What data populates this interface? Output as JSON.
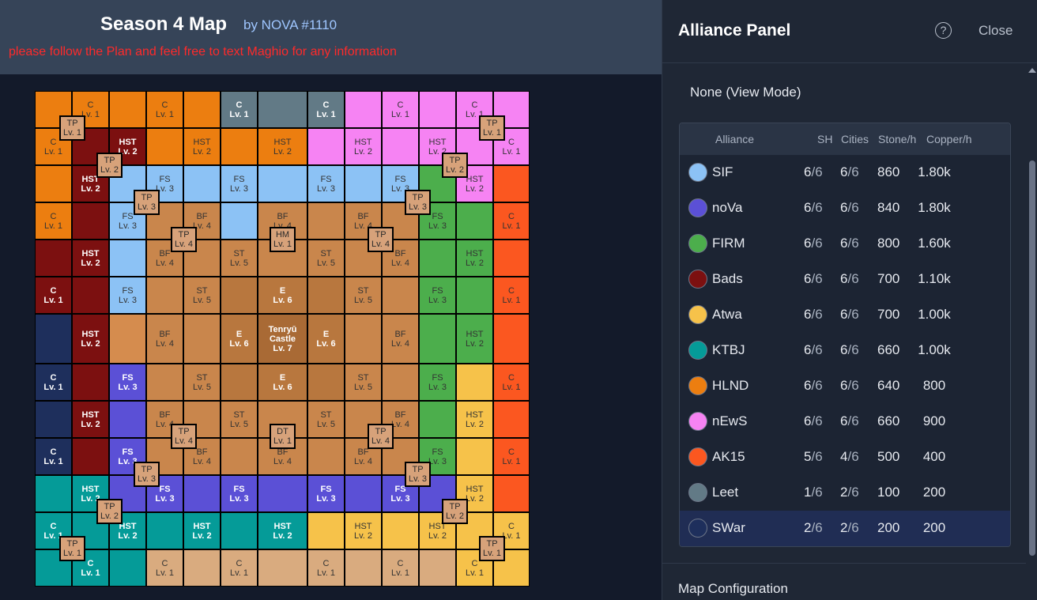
{
  "header": {
    "title": "Season 4 Map",
    "byline": "by NOVA #1110",
    "notice": "please follow the Plan and feel free to text Maghio for any information"
  },
  "colors": {
    "orange": "#ec7e10",
    "darkred": "#7c1010",
    "lightblue": "#8cc2f5",
    "purple": "#5b50d6",
    "green": "#4cae4c",
    "pink": "#f683f3",
    "red": "#fb5720",
    "gray": "#627a86",
    "navy": "#1e2f5c",
    "teal": "#059b98",
    "yellow": "#f6c24a",
    "tan": "#d9ab7f",
    "brown": "#c9864c",
    "brown2": "#b8773e",
    "brown3": "#a96a35",
    "peach": "#d58c4e"
  },
  "map": {
    "tiles": [
      [
        "orange",
        "",
        "",
        ""
      ],
      [
        "orange",
        "C",
        "Lv. 1",
        ""
      ],
      [
        "orange",
        "",
        "",
        ""
      ],
      [
        "orange",
        "C",
        "Lv. 1",
        ""
      ],
      [
        "orange",
        "",
        "",
        ""
      ],
      [
        "gray",
        "C",
        "Lv. 1",
        "dark"
      ],
      [
        "gray",
        "",
        "",
        ""
      ],
      [
        "gray",
        "C",
        "Lv. 1",
        "dark"
      ],
      [
        "pink",
        "",
        "",
        ""
      ],
      [
        "pink",
        "C",
        "Lv. 1",
        ""
      ],
      [
        "pink",
        "",
        "",
        ""
      ],
      [
        "pink",
        "C",
        "Lv. 1",
        ""
      ],
      [
        "pink",
        "",
        "",
        ""
      ],
      [
        "orange",
        "C",
        "Lv. 1",
        ""
      ],
      [
        "darkred",
        "",
        "",
        ""
      ],
      [
        "darkred",
        "HST",
        "Lv. 2",
        "dark"
      ],
      [
        "orange",
        "",
        "",
        ""
      ],
      [
        "orange",
        "HST",
        "Lv. 2",
        ""
      ],
      [
        "orange",
        "",
        "",
        ""
      ],
      [
        "orange",
        "HST",
        "Lv. 2",
        ""
      ],
      [
        "pink",
        "",
        "",
        ""
      ],
      [
        "pink",
        "HST",
        "Lv. 2",
        ""
      ],
      [
        "pink",
        "",
        "",
        ""
      ],
      [
        "pink",
        "HST",
        "Lv. 2",
        ""
      ],
      [
        "pink",
        "",
        "",
        ""
      ],
      [
        "pink",
        "C",
        "Lv. 1",
        ""
      ],
      [
        "orange",
        "",
        "",
        ""
      ],
      [
        "darkred",
        "HST",
        "Lv. 2",
        "dark"
      ],
      [
        "lightblue",
        "",
        "",
        ""
      ],
      [
        "lightblue",
        "FS",
        "Lv. 3",
        ""
      ],
      [
        "lightblue",
        "",
        "",
        ""
      ],
      [
        "lightblue",
        "FS",
        "Lv. 3",
        ""
      ],
      [
        "lightblue",
        "",
        "",
        ""
      ],
      [
        "lightblue",
        "FS",
        "Lv. 3",
        ""
      ],
      [
        "lightblue",
        "",
        "",
        ""
      ],
      [
        "lightblue",
        "FS",
        "Lv. 3",
        ""
      ],
      [
        "green",
        "",
        "",
        ""
      ],
      [
        "pink",
        "HST",
        "Lv. 2",
        ""
      ],
      [
        "red",
        "",
        "",
        ""
      ],
      [
        "orange",
        "C",
        "Lv. 1",
        ""
      ],
      [
        "darkred",
        "",
        "",
        ""
      ],
      [
        "lightblue",
        "FS",
        "Lv. 3",
        ""
      ],
      [
        "brown",
        "",
        "",
        ""
      ],
      [
        "brown",
        "BF",
        "Lv. 4",
        ""
      ],
      [
        "lightblue",
        "",
        "",
        ""
      ],
      [
        "brown",
        "BF",
        "Lv. 4",
        ""
      ],
      [
        "brown",
        "",
        "",
        ""
      ],
      [
        "brown",
        "BF",
        "Lv. 4",
        ""
      ],
      [
        "brown",
        "",
        "",
        ""
      ],
      [
        "green",
        "FS",
        "Lv. 3",
        ""
      ],
      [
        "green",
        "",
        "",
        ""
      ],
      [
        "red",
        "C",
        "Lv. 1",
        ""
      ],
      [
        "darkred",
        "",
        "",
        ""
      ],
      [
        "darkred",
        "HST",
        "Lv. 2",
        "dark"
      ],
      [
        "lightblue",
        "",
        "",
        ""
      ],
      [
        "brown",
        "BF",
        "Lv. 4",
        ""
      ],
      [
        "brown",
        "",
        "",
        ""
      ],
      [
        "brown",
        "ST",
        "Lv. 5",
        ""
      ],
      [
        "brown",
        "",
        "",
        ""
      ],
      [
        "brown",
        "ST",
        "Lv. 5",
        ""
      ],
      [
        "brown",
        "",
        "",
        ""
      ],
      [
        "brown",
        "BF",
        "Lv. 4",
        ""
      ],
      [
        "green",
        "",
        "",
        ""
      ],
      [
        "green",
        "HST",
        "Lv. 2",
        ""
      ],
      [
        "red",
        "",
        "",
        ""
      ],
      [
        "darkred",
        "C",
        "Lv. 1",
        "dark"
      ],
      [
        "darkred",
        "",
        "",
        ""
      ],
      [
        "lightblue",
        "FS",
        "Lv. 3",
        ""
      ],
      [
        "brown",
        "",
        "",
        ""
      ],
      [
        "brown",
        "ST",
        "Lv. 5",
        ""
      ],
      [
        "brown2",
        "",
        "",
        ""
      ],
      [
        "brown2",
        "E",
        "Lv. 6",
        "dark"
      ],
      [
        "brown2",
        "",
        "",
        ""
      ],
      [
        "brown",
        "ST",
        "Lv. 5",
        ""
      ],
      [
        "brown",
        "",
        "",
        ""
      ],
      [
        "green",
        "FS",
        "Lv. 3",
        ""
      ],
      [
        "green",
        "",
        "",
        ""
      ],
      [
        "red",
        "C",
        "Lv. 1",
        ""
      ],
      [
        "navy",
        "",
        "",
        ""
      ],
      [
        "darkred",
        "HST",
        "Lv. 2",
        "dark"
      ],
      [
        "peach",
        "",
        "",
        ""
      ],
      [
        "brown",
        "BF",
        "Lv. 4",
        ""
      ],
      [
        "brown",
        "",
        "",
        ""
      ],
      [
        "brown2",
        "E",
        "Lv. 6",
        "dark"
      ],
      [
        "brown3",
        "Tenryū Castle",
        "Lv. 7",
        "dark"
      ],
      [
        "brown2",
        "E",
        "Lv. 6",
        "dark"
      ],
      [
        "brown",
        "",
        "",
        ""
      ],
      [
        "brown",
        "BF",
        "Lv. 4",
        ""
      ],
      [
        "green",
        "",
        "",
        ""
      ],
      [
        "green",
        "HST",
        "Lv. 2",
        ""
      ],
      [
        "red",
        "",
        "",
        ""
      ],
      [
        "navy",
        "C",
        "Lv. 1",
        "dark"
      ],
      [
        "darkred",
        "",
        "",
        ""
      ],
      [
        "purple",
        "FS",
        "Lv. 3",
        "dark"
      ],
      [
        "brown",
        "",
        "",
        ""
      ],
      [
        "brown",
        "ST",
        "Lv. 5",
        ""
      ],
      [
        "brown2",
        "",
        "",
        ""
      ],
      [
        "brown2",
        "E",
        "Lv. 6",
        "dark"
      ],
      [
        "brown2",
        "",
        "",
        ""
      ],
      [
        "brown",
        "ST",
        "Lv. 5",
        ""
      ],
      [
        "brown",
        "",
        "",
        ""
      ],
      [
        "green",
        "FS",
        "Lv. 3",
        ""
      ],
      [
        "yellow",
        "",
        "",
        ""
      ],
      [
        "red",
        "C",
        "Lv. 1",
        ""
      ],
      [
        "navy",
        "",
        "",
        ""
      ],
      [
        "darkred",
        "HST",
        "Lv. 2",
        "dark"
      ],
      [
        "purple",
        "",
        "",
        ""
      ],
      [
        "brown",
        "BF",
        "Lv. 4",
        ""
      ],
      [
        "brown",
        "",
        "",
        ""
      ],
      [
        "brown",
        "ST",
        "Lv. 5",
        ""
      ],
      [
        "brown",
        "",
        "",
        ""
      ],
      [
        "brown",
        "ST",
        "Lv. 5",
        ""
      ],
      [
        "brown",
        "",
        "",
        ""
      ],
      [
        "brown",
        "BF",
        "Lv. 4",
        ""
      ],
      [
        "green",
        "",
        "",
        ""
      ],
      [
        "yellow",
        "HST",
        "Lv. 2",
        ""
      ],
      [
        "red",
        "",
        "",
        ""
      ],
      [
        "navy",
        "C",
        "Lv. 1",
        "dark"
      ],
      [
        "darkred",
        "",
        "",
        ""
      ],
      [
        "purple",
        "FS",
        "Lv. 3",
        "dark"
      ],
      [
        "brown",
        "",
        "",
        ""
      ],
      [
        "brown",
        "BF",
        "Lv. 4",
        ""
      ],
      [
        "brown",
        "",
        "",
        ""
      ],
      [
        "brown",
        "BF",
        "Lv. 4",
        ""
      ],
      [
        "brown",
        "",
        "",
        ""
      ],
      [
        "brown",
        "BF",
        "Lv. 4",
        ""
      ],
      [
        "brown",
        "",
        "",
        ""
      ],
      [
        "green",
        "FS",
        "Lv. 3",
        ""
      ],
      [
        "yellow",
        "",
        "",
        ""
      ],
      [
        "red",
        "C",
        "Lv. 1",
        ""
      ],
      [
        "teal",
        "",
        "",
        ""
      ],
      [
        "teal",
        "HST",
        "Lv. 2",
        "dark"
      ],
      [
        "purple",
        "",
        "",
        ""
      ],
      [
        "purple",
        "FS",
        "Lv. 3",
        "dark"
      ],
      [
        "purple",
        "",
        "",
        ""
      ],
      [
        "purple",
        "FS",
        "Lv. 3",
        "dark"
      ],
      [
        "purple",
        "",
        "",
        ""
      ],
      [
        "purple",
        "FS",
        "Lv. 3",
        "dark"
      ],
      [
        "purple",
        "",
        "",
        ""
      ],
      [
        "purple",
        "FS",
        "Lv. 3",
        "dark"
      ],
      [
        "purple",
        "",
        "",
        ""
      ],
      [
        "yellow",
        "HST",
        "Lv. 2",
        ""
      ],
      [
        "red",
        "",
        "",
        ""
      ],
      [
        "teal",
        "C",
        "Lv. 1",
        "dark"
      ],
      [
        "teal",
        "",
        "",
        ""
      ],
      [
        "teal",
        "HST",
        "Lv. 2",
        "dark"
      ],
      [
        "teal",
        "",
        "",
        ""
      ],
      [
        "teal",
        "HST",
        "Lv. 2",
        "dark"
      ],
      [
        "teal",
        "",
        "",
        ""
      ],
      [
        "teal",
        "HST",
        "Lv. 2",
        "dark"
      ],
      [
        "yellow",
        "",
        "",
        ""
      ],
      [
        "yellow",
        "HST",
        "Lv. 2",
        ""
      ],
      [
        "yellow",
        "",
        "",
        ""
      ],
      [
        "yellow",
        "HST",
        "Lv. 2",
        ""
      ],
      [
        "yellow",
        "",
        "",
        ""
      ],
      [
        "yellow",
        "C",
        "Lv. 1",
        ""
      ],
      [
        "teal",
        "",
        "",
        ""
      ],
      [
        "teal",
        "C",
        "Lv. 1",
        "dark"
      ],
      [
        "teal",
        "",
        "",
        ""
      ],
      [
        "tan",
        "C",
        "Lv. 1",
        ""
      ],
      [
        "tan",
        "",
        "",
        ""
      ],
      [
        "tan",
        "C",
        "Lv. 1",
        ""
      ],
      [
        "tan",
        "",
        "",
        ""
      ],
      [
        "tan",
        "C",
        "Lv. 1",
        ""
      ],
      [
        "tan",
        "",
        "",
        ""
      ],
      [
        "tan",
        "C",
        "Lv. 1",
        ""
      ],
      [
        "tan",
        "",
        "",
        ""
      ],
      [
        "yellow",
        "C",
        "Lv. 1",
        ""
      ],
      [
        "yellow",
        "",
        "",
        ""
      ]
    ],
    "markers": [
      [
        "TP",
        "Lv. 1"
      ],
      [
        "TP",
        "Lv. 1"
      ],
      [
        "TP",
        "Lv. 2"
      ],
      [
        "TP",
        "Lv. 2"
      ],
      [
        "TP",
        "Lv. 3"
      ],
      [
        "TP",
        "Lv. 3"
      ],
      [
        "TP",
        "Lv. 4"
      ],
      [
        "HM",
        "Lv. 1"
      ],
      [
        "TP",
        "Lv. 4"
      ],
      [
        "TP",
        "Lv. 4"
      ],
      [
        "DT",
        "Lv. 1"
      ],
      [
        "TP",
        "Lv. 4"
      ],
      [
        "TP",
        "Lv. 3"
      ],
      [
        "TP",
        "Lv. 3"
      ],
      [
        "TP",
        "Lv. 2"
      ],
      [
        "TP",
        "Lv. 2"
      ],
      [
        "TP",
        "Lv. 1"
      ],
      [
        "TP",
        "Lv. 1"
      ]
    ]
  },
  "panel": {
    "title": "Alliance Panel",
    "help_icon": "help-circle-icon",
    "close_label": "Close",
    "mode_label": "None (View Mode)",
    "columns": {
      "alliance": "Alliance",
      "sh": "SH",
      "cities": "Cities",
      "stone": "Stone/h",
      "copper": "Copper/h"
    },
    "rows": [
      {
        "name": "SIF",
        "color": "#8cc2f5",
        "sh": "6",
        "sh_total": "/6",
        "cities": "6",
        "cities_total": "/6",
        "stone": "860",
        "copper": "1.80k"
      },
      {
        "name": "noVa",
        "color": "#5b50d6",
        "sh": "6",
        "sh_total": "/6",
        "cities": "6",
        "cities_total": "/6",
        "stone": "840",
        "copper": "1.80k"
      },
      {
        "name": "FIRM",
        "color": "#4cae4c",
        "sh": "6",
        "sh_total": "/6",
        "cities": "6",
        "cities_total": "/6",
        "stone": "800",
        "copper": "1.60k"
      },
      {
        "name": "Bads",
        "color": "#7c1010",
        "sh": "6",
        "sh_total": "/6",
        "cities": "6",
        "cities_total": "/6",
        "stone": "700",
        "copper": "1.10k"
      },
      {
        "name": "Atwa",
        "color": "#f6c24a",
        "sh": "6",
        "sh_total": "/6",
        "cities": "6",
        "cities_total": "/6",
        "stone": "700",
        "copper": "1.00k"
      },
      {
        "name": "KTBJ",
        "color": "#059b98",
        "sh": "6",
        "sh_total": "/6",
        "cities": "6",
        "cities_total": "/6",
        "stone": "660",
        "copper": "1.00k"
      },
      {
        "name": "HLND",
        "color": "#ec7e10",
        "sh": "6",
        "sh_total": "/6",
        "cities": "6",
        "cities_total": "/6",
        "stone": "640",
        "copper": "800"
      },
      {
        "name": "nEwS",
        "color": "#f683f3",
        "sh": "6",
        "sh_total": "/6",
        "cities": "6",
        "cities_total": "/6",
        "stone": "660",
        "copper": "900"
      },
      {
        "name": "AK15",
        "color": "#fb5720",
        "sh": "5",
        "sh_total": "/6",
        "cities": "4",
        "cities_total": "/6",
        "stone": "500",
        "copper": "400"
      },
      {
        "name": "Leet",
        "color": "#627a86",
        "sh": "1",
        "sh_total": "/6",
        "cities": "2",
        "cities_total": "/6",
        "stone": "100",
        "copper": "200"
      },
      {
        "name": "SWar",
        "color": "#1e2f5c",
        "sh": "2",
        "sh_total": "/6",
        "cities": "2",
        "cities_total": "/6",
        "stone": "200",
        "copper": "200",
        "selected": true
      }
    ],
    "config_label": "Map Configuration"
  }
}
